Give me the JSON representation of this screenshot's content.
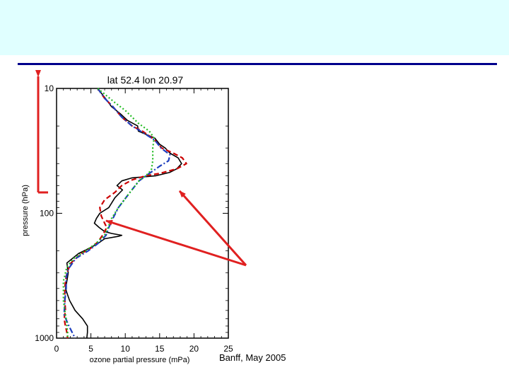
{
  "slide": {
    "footer_note": "Banff, May 2005",
    "header_color": "#e0ffff",
    "rule_color": "#00008b"
  },
  "chart_data": {
    "type": "line",
    "title": "lat 52.4   lon 20.97",
    "xlabel": "ozone partial pressure (mPa)",
    "ylabel": "pressure (hPa)",
    "xlim": [
      0,
      25
    ],
    "ylim": [
      1000,
      10
    ],
    "y_scale": "log",
    "x_ticks": [
      0,
      5,
      10,
      15,
      20,
      25
    ],
    "y_ticks": [
      10,
      100,
      1000
    ],
    "x_tick_labels": [
      "0",
      "5",
      "10",
      "15",
      "20",
      "25"
    ],
    "y_tick_labels": [
      "10",
      "100",
      "1000"
    ],
    "series": [
      {
        "color": "#000000",
        "style": "solid",
        "points": [
          [
            6.0,
            10
          ],
          [
            7.1,
            12
          ],
          [
            8.0,
            14
          ],
          [
            9.3,
            16
          ],
          [
            10.3,
            18
          ],
          [
            11.8,
            20
          ],
          [
            11.9,
            22
          ],
          [
            14.3,
            25
          ],
          [
            15.0,
            28
          ],
          [
            15.8,
            30
          ],
          [
            16.5,
            33
          ],
          [
            17.7,
            36
          ],
          [
            18.2,
            40
          ],
          [
            17.5,
            44
          ],
          [
            16.5,
            47
          ],
          [
            14.5,
            50
          ],
          [
            11.0,
            52
          ],
          [
            9.5,
            55
          ],
          [
            8.8,
            60
          ],
          [
            9.6,
            65
          ],
          [
            8.5,
            75
          ],
          [
            7.6,
            90
          ],
          [
            6.3,
            100
          ],
          [
            5.8,
            110
          ],
          [
            5.5,
            120
          ],
          [
            6.2,
            130
          ],
          [
            7.0,
            140
          ],
          [
            8.0,
            145
          ],
          [
            9.5,
            150
          ],
          [
            9.0,
            153
          ],
          [
            7.0,
            160
          ],
          [
            6.0,
            175
          ],
          [
            4.8,
            190
          ],
          [
            3.2,
            210
          ],
          [
            1.5,
            250
          ],
          [
            1.7,
            300
          ],
          [
            1.5,
            350
          ],
          [
            1.3,
            400
          ],
          [
            1.6,
            450
          ],
          [
            1.9,
            500
          ],
          [
            2.7,
            600
          ],
          [
            3.8,
            700
          ],
          [
            4.5,
            800
          ],
          [
            4.5,
            900
          ],
          [
            4.4,
            1000
          ]
        ]
      },
      {
        "color": "#cc0000",
        "style": "dashed",
        "points": [
          [
            6.0,
            10
          ],
          [
            7.0,
            12
          ],
          [
            8.2,
            14
          ],
          [
            9.5,
            17
          ],
          [
            11.0,
            20
          ],
          [
            12.5,
            22
          ],
          [
            13.5,
            24
          ],
          [
            14.3,
            26
          ],
          [
            15.3,
            30
          ],
          [
            17.0,
            33
          ],
          [
            18.3,
            36
          ],
          [
            18.9,
            40
          ],
          [
            17.5,
            44
          ],
          [
            15.0,
            48
          ],
          [
            13.0,
            50
          ],
          [
            11.0,
            54
          ],
          [
            9.5,
            60
          ],
          [
            8.5,
            68
          ],
          [
            7.0,
            78
          ],
          [
            6.3,
            90
          ],
          [
            6.5,
            105
          ],
          [
            7.0,
            120
          ],
          [
            7.3,
            130
          ],
          [
            6.7,
            150
          ],
          [
            6.0,
            170
          ],
          [
            5.0,
            190
          ],
          [
            3.6,
            210
          ],
          [
            2.1,
            250
          ],
          [
            1.5,
            300
          ],
          [
            1.3,
            350
          ],
          [
            1.2,
            400
          ],
          [
            1.2,
            500
          ],
          [
            1.3,
            600
          ],
          [
            1.1,
            700
          ],
          [
            1.3,
            800
          ],
          [
            1.5,
            900
          ],
          [
            1.6,
            1000
          ]
        ]
      },
      {
        "color": "#1f3fbf",
        "style": "dashdot",
        "points": [
          [
            6.0,
            10
          ],
          [
            7.0,
            12
          ],
          [
            8.2,
            14
          ],
          [
            9.5,
            17
          ],
          [
            11.0,
            20
          ],
          [
            12.8,
            23
          ],
          [
            14.3,
            26
          ],
          [
            15.2,
            30
          ],
          [
            16.5,
            34
          ],
          [
            16.3,
            38
          ],
          [
            15.0,
            42
          ],
          [
            13.5,
            48
          ],
          [
            12.0,
            55
          ],
          [
            10.5,
            70
          ],
          [
            9.0,
            90
          ],
          [
            8.2,
            110
          ],
          [
            7.6,
            130
          ],
          [
            7.2,
            150
          ],
          [
            6.0,
            175
          ],
          [
            4.6,
            200
          ],
          [
            2.8,
            230
          ],
          [
            1.7,
            280
          ],
          [
            1.4,
            330
          ],
          [
            1.4,
            400
          ],
          [
            1.2,
            500
          ],
          [
            1.1,
            650
          ],
          [
            1.8,
            800
          ],
          [
            2.7,
            1000
          ]
        ]
      },
      {
        "color": "#22bb22",
        "style": "dotted",
        "points": [
          [
            6.0,
            10
          ],
          [
            8.5,
            13
          ],
          [
            10.0,
            15
          ],
          [
            11.9,
            19
          ],
          [
            13.5,
            22
          ],
          [
            14.2,
            25
          ],
          [
            14.0,
            30
          ],
          [
            14.0,
            38
          ],
          [
            13.8,
            45
          ],
          [
            13.0,
            50
          ],
          [
            12.0,
            55
          ],
          [
            10.5,
            70
          ],
          [
            9.0,
            90
          ],
          [
            8.0,
            110
          ],
          [
            7.5,
            130
          ],
          [
            7.0,
            150
          ],
          [
            5.7,
            175
          ],
          [
            4.2,
            200
          ],
          [
            2.5,
            230
          ],
          [
            1.5,
            270
          ],
          [
            1.0,
            350
          ],
          [
            1.0,
            400
          ],
          [
            1.0,
            500
          ],
          [
            1.2,
            600
          ],
          [
            1.4,
            700
          ],
          [
            1.6,
            900
          ],
          [
            1.6,
            1000
          ]
        ]
      }
    ]
  }
}
